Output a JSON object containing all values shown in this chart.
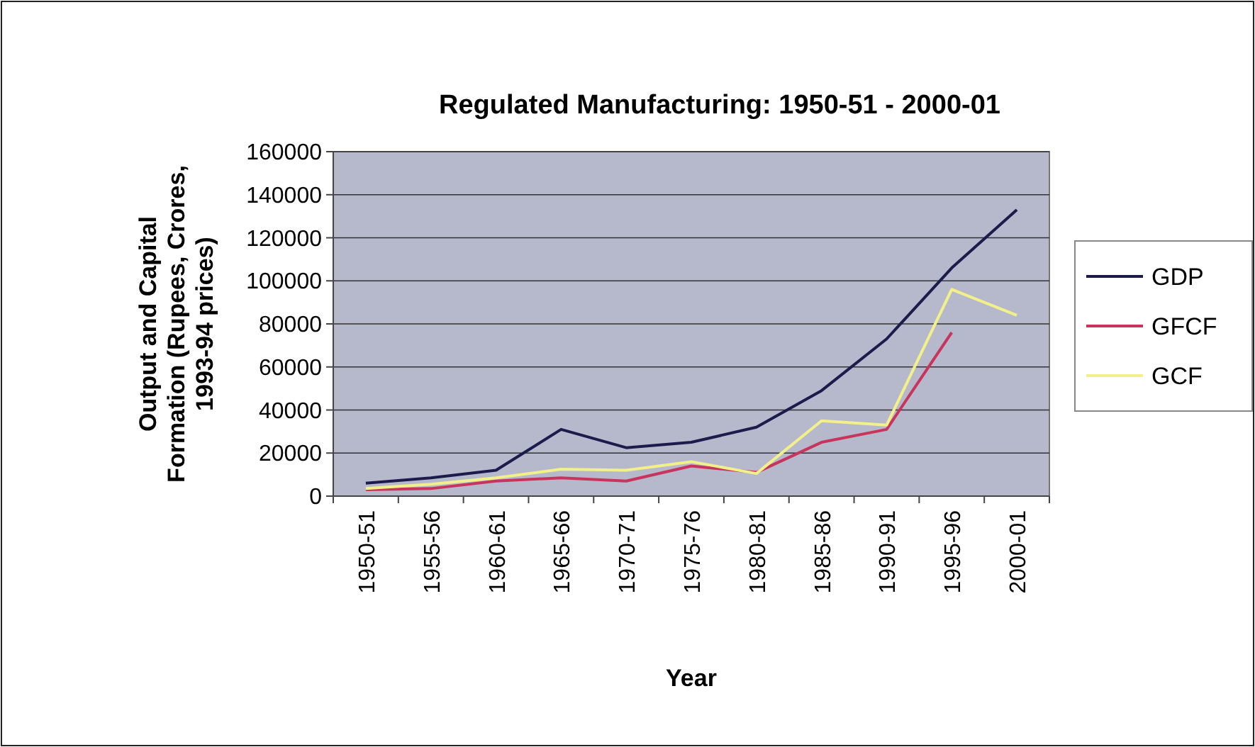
{
  "chart_data": {
    "type": "line",
    "title": "Regulated Manufacturing: 1950-51 - 2000-01",
    "xlabel": "Year",
    "ylabel": "Output and Capital Formation (Rupees, Crores, 1993-94 prices)",
    "categories": [
      "1950-51",
      "1955-56",
      "1960-61",
      "1965-66",
      "1970-71",
      "1975-76",
      "1980-81",
      "1985-86",
      "1990-91",
      "1995-96",
      "2000-01"
    ],
    "series": [
      {
        "name": "GDP",
        "color": "#1c1c4c",
        "values": [
          6000,
          8500,
          12000,
          31000,
          22500,
          25000,
          32000,
          49000,
          73000,
          106000,
          133000
        ]
      },
      {
        "name": "GFCF",
        "color": "#c8345c",
        "values": [
          3000,
          3500,
          7000,
          8500,
          7000,
          14000,
          11000,
          25000,
          31000,
          76000,
          null
        ]
      },
      {
        "name": "GCF",
        "color": "#f2f08a",
        "values": [
          3500,
          5500,
          8500,
          12500,
          12000,
          16000,
          10500,
          35000,
          33000,
          96000,
          84000
        ]
      }
    ],
    "ylim": [
      0,
      160000
    ],
    "yticks": [
      0,
      20000,
      40000,
      60000,
      80000,
      100000,
      120000,
      140000,
      160000
    ],
    "grid": "y",
    "legend": "right"
  }
}
